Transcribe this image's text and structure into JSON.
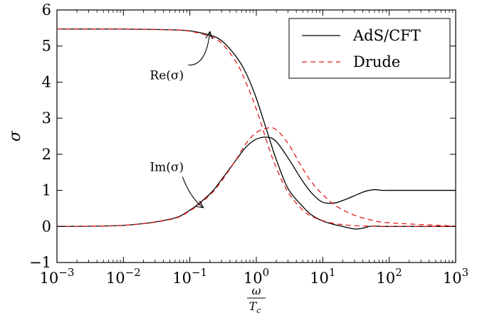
{
  "chart_data": {
    "type": "line",
    "xscale": "log",
    "xlim": [
      0.001,
      1000
    ],
    "ylim": [
      -1,
      6
    ],
    "xticks": [
      0.001,
      0.01,
      0.1,
      1,
      10,
      100,
      1000
    ],
    "xtick_labels": [
      {
        "base": "10",
        "exp": "−3"
      },
      {
        "base": "10",
        "exp": "−2"
      },
      {
        "base": "10",
        "exp": "−1"
      },
      {
        "base": "10",
        "exp": "0"
      },
      {
        "base": "10",
        "exp": "1"
      },
      {
        "base": "10",
        "exp": "2"
      },
      {
        "base": "10",
        "exp": "3"
      }
    ],
    "yticks": [
      -1,
      0,
      1,
      2,
      3,
      4,
      5,
      6
    ],
    "ytick_labels": [
      "−1",
      "0",
      "1",
      "2",
      "3",
      "4",
      "5",
      "6"
    ],
    "xlabel": {
      "num": "ω",
      "den": "T",
      "den_sub": "c"
    },
    "ylabel": "σ",
    "grid": false,
    "legend": {
      "position": "top-right",
      "entries": [
        {
          "label": "AdS/CFT",
          "color": "#000000",
          "style": "solid"
        },
        {
          "label": "Drude",
          "color": "#e41a1c",
          "style": "dashed"
        }
      ]
    },
    "series": [
      {
        "name": "AdS/CFT",
        "component": "Re(σ)",
        "color": "#000000",
        "style": "solid",
        "x": [
          0.001,
          0.01,
          0.05,
          0.1,
          0.2,
          0.3,
          0.5,
          0.7,
          1,
          1.5,
          2,
          3,
          5,
          7,
          10,
          15,
          20,
          30,
          40,
          50,
          60,
          80,
          100,
          1000
        ],
        "y": [
          5.47,
          5.47,
          5.45,
          5.42,
          5.3,
          5.15,
          4.7,
          4.25,
          3.55,
          2.55,
          1.85,
          1.05,
          0.55,
          0.3,
          0.15,
          0.05,
          0.0,
          -0.07,
          -0.05,
          0.0,
          0.01,
          0.0,
          0.0,
          0.0
        ]
      },
      {
        "name": "AdS/CFT",
        "component": "Im(σ)",
        "color": "#000000",
        "style": "solid",
        "x": [
          0.001,
          0.01,
          0.05,
          0.1,
          0.2,
          0.3,
          0.5,
          0.7,
          1,
          1.5,
          2,
          3,
          5,
          7,
          10,
          15,
          20,
          30,
          40,
          50,
          60,
          80,
          100,
          1000
        ],
        "y": [
          0.0,
          0.03,
          0.2,
          0.45,
          0.9,
          1.3,
          1.85,
          2.2,
          2.42,
          2.47,
          2.35,
          1.9,
          1.25,
          0.9,
          0.67,
          0.65,
          0.72,
          0.85,
          0.95,
          1.0,
          1.02,
          1.0,
          1.0,
          1.0
        ]
      },
      {
        "name": "Drude",
        "component": "Re(σ)",
        "color": "#e41a1c",
        "style": "dashed",
        "x": [
          0.001,
          0.01,
          0.05,
          0.1,
          0.2,
          0.3,
          0.5,
          0.7,
          1,
          1.5,
          2,
          3,
          5,
          7,
          10,
          15,
          20,
          30,
          50,
          100,
          1000
        ],
        "y": [
          5.47,
          5.47,
          5.45,
          5.41,
          5.27,
          5.08,
          4.55,
          3.98,
          3.25,
          2.25,
          1.62,
          0.95,
          0.45,
          0.27,
          0.16,
          0.08,
          0.05,
          0.02,
          0.01,
          0.0,
          0.0
        ]
      },
      {
        "name": "Drude",
        "component": "Im(σ)",
        "color": "#e41a1c",
        "style": "dashed",
        "x": [
          0.001,
          0.01,
          0.05,
          0.1,
          0.2,
          0.3,
          0.5,
          0.7,
          1,
          1.5,
          2,
          3,
          5,
          7,
          10,
          15,
          20,
          30,
          50,
          100,
          1000
        ],
        "y": [
          0.0,
          0.03,
          0.19,
          0.43,
          0.87,
          1.26,
          1.86,
          2.3,
          2.6,
          2.73,
          2.68,
          2.3,
          1.6,
          1.2,
          0.88,
          0.6,
          0.46,
          0.31,
          0.19,
          0.1,
          0.01
        ]
      }
    ],
    "annotations": [
      {
        "text": "Re(σ)",
        "x": 0.045,
        "y": 4.2,
        "arrow_to_x": 0.2,
        "arrow_to_y": 5.4
      },
      {
        "text": "Im(σ)",
        "x": 0.045,
        "y": 1.65,
        "arrow_to_x": 0.16,
        "arrow_to_y": 0.52
      }
    ]
  }
}
